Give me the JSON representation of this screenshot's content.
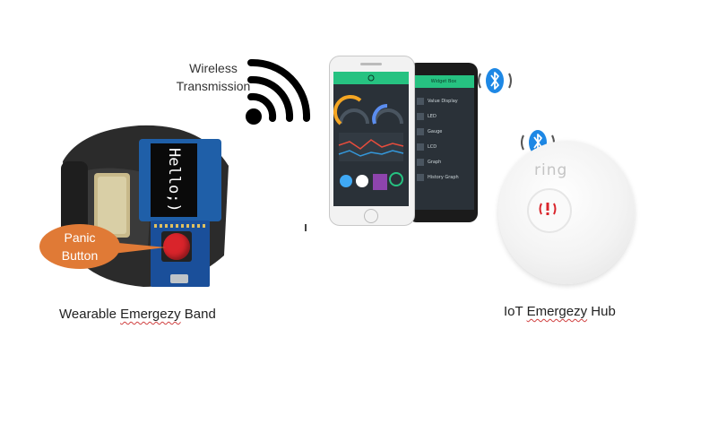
{
  "wireless": {
    "line1": "Wireless",
    "line2": "Transmission"
  },
  "band": {
    "oled_text": "Hello;)",
    "panic_line1": "Panic",
    "panic_line2": "Button",
    "caption_prefix": "Wearable ",
    "caption_misspelled": "Emergezy",
    "caption_suffix": " Band"
  },
  "hub": {
    "brand": "ring",
    "caption_prefix": "IoT ",
    "caption_misspelled": "Emergezy",
    "caption_suffix": " Hub"
  },
  "app": {
    "panel_title": "Widget Box",
    "widgets": [
      "Value Display",
      "LED",
      "Gauge",
      "LCD",
      "Graph",
      "History Graph"
    ]
  },
  "icons": {
    "wireless": "wifi-signal-icon",
    "bluetooth": "bluetooth-icon",
    "alert": "alert-icon"
  },
  "colors": {
    "panic_bubble": "#e07a36",
    "panic_button": "#d9242b",
    "bluetooth": "#1e88e5",
    "app_green": "#26c281",
    "app_bg": "#2a3138"
  }
}
